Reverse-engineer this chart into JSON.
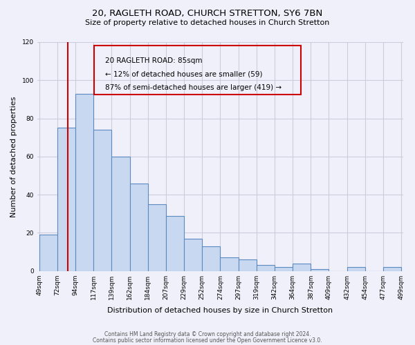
{
  "title": "20, RAGLETH ROAD, CHURCH STRETTON, SY6 7BN",
  "subtitle": "Size of property relative to detached houses in Church Stretton",
  "xlabel": "Distribution of detached houses by size in Church Stretton",
  "ylabel": "Number of detached properties",
  "bar_color": "#c8d8f0",
  "bar_edge_color": "#5a8abf",
  "bin_edges": [
    49,
    72,
    94,
    117,
    139,
    162,
    184,
    207,
    229,
    252,
    274,
    297,
    319,
    342,
    364,
    387,
    409,
    432,
    454,
    477,
    499
  ],
  "bin_labels": [
    "49sqm",
    "72sqm",
    "94sqm",
    "117sqm",
    "139sqm",
    "162sqm",
    "184sqm",
    "207sqm",
    "229sqm",
    "252sqm",
    "274sqm",
    "297sqm",
    "319sqm",
    "342sqm",
    "364sqm",
    "387sqm",
    "409sqm",
    "432sqm",
    "454sqm",
    "477sqm",
    "499sqm"
  ],
  "values": [
    19,
    75,
    93,
    74,
    60,
    46,
    35,
    29,
    17,
    13,
    7,
    6,
    3,
    2,
    4,
    1,
    0,
    2,
    0,
    2
  ],
  "ylim": [
    0,
    120
  ],
  "yticks": [
    0,
    20,
    40,
    60,
    80,
    100,
    120
  ],
  "annotation_title": "20 RAGLETH ROAD: 85sqm",
  "annotation_line1": "← 12% of detached houses are smaller (59)",
  "annotation_line2": "87% of semi-detached houses are larger (419) →",
  "vline_color": "#cc0000",
  "annotation_box_color": "#cc0000",
  "footer_line1": "Contains HM Land Registry data © Crown copyright and database right 2024.",
  "footer_line2": "Contains public sector information licensed under the Open Government Licence v3.0.",
  "background_color": "#f0f0fa",
  "grid_color": "#ccccdd"
}
